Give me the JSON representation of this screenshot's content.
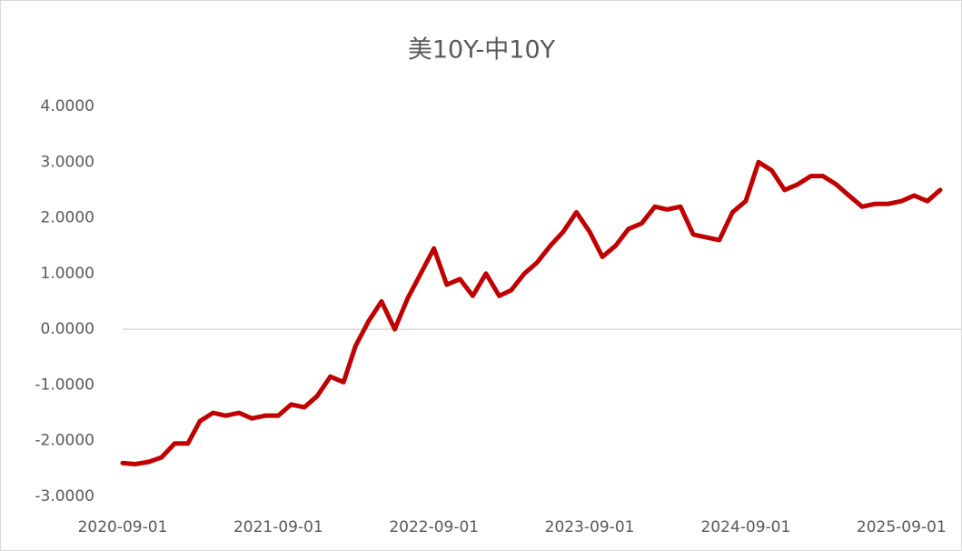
{
  "chart_data": {
    "type": "line",
    "title": "美10Y-中10Y",
    "x": [
      "2020-09-01",
      "2020-10-01",
      "2020-11-01",
      "2020-12-01",
      "2021-01-01",
      "2021-02-01",
      "2021-03-01",
      "2021-04-01",
      "2021-05-01",
      "2021-06-01",
      "2021-07-01",
      "2021-08-01",
      "2021-09-01",
      "2021-10-01",
      "2021-11-01",
      "2021-12-01",
      "2022-01-01",
      "2022-02-01",
      "2022-03-01",
      "2022-04-01",
      "2022-05-01",
      "2022-06-01",
      "2022-07-01",
      "2022-08-01",
      "2022-09-01",
      "2022-10-01",
      "2022-11-01",
      "2022-12-01",
      "2023-01-01",
      "2023-02-01",
      "2023-03-01",
      "2023-04-01",
      "2023-05-01",
      "2023-06-01",
      "2023-07-01",
      "2023-08-01",
      "2023-09-01",
      "2023-10-01",
      "2023-11-01",
      "2023-12-01",
      "2024-01-01",
      "2024-02-01",
      "2024-03-01",
      "2024-04-01",
      "2024-05-01",
      "2024-06-01",
      "2024-07-01",
      "2024-08-01",
      "2024-09-01",
      "2024-10-01",
      "2024-11-01",
      "2024-12-01",
      "2025-01-01",
      "2025-02-01",
      "2025-03-01",
      "2025-04-01",
      "2025-05-01",
      "2025-06-01",
      "2025-07-01",
      "2025-08-01",
      "2025-09-01",
      "2025-10-01",
      "2025-11-01",
      "2025-12-01"
    ],
    "series": [
      {
        "name": "美10Y-中10Y",
        "color": "#c00000",
        "values": [
          -2.4,
          -2.42,
          -2.38,
          -2.3,
          -2.05,
          -2.05,
          -1.65,
          -1.5,
          -1.55,
          -1.5,
          -1.6,
          -1.55,
          -1.55,
          -1.35,
          -1.4,
          -1.2,
          -0.85,
          -0.95,
          -0.3,
          0.15,
          0.5,
          0.0,
          0.55,
          1.0,
          1.45,
          0.8,
          0.9,
          0.6,
          1.0,
          0.6,
          0.7,
          1.0,
          1.2,
          1.5,
          1.75,
          2.1,
          1.75,
          1.3,
          1.5,
          1.8,
          1.9,
          2.2,
          2.15,
          2.2,
          1.7,
          1.65,
          1.6,
          2.1,
          2.3,
          3.0,
          2.85,
          2.5,
          2.6,
          2.75,
          2.75,
          2.6,
          2.4,
          2.2,
          2.25,
          2.25,
          2.3,
          2.4,
          2.3,
          2.5
        ]
      }
    ],
    "xlim": [
      "2020-09-01",
      "2025-12-01"
    ],
    "xticks": [
      "2020-09-01",
      "2021-09-01",
      "2022-09-01",
      "2023-09-01",
      "2024-09-01",
      "2025-09-01"
    ],
    "ylim": [
      -3,
      4
    ],
    "yticks": [
      {
        "value": 4,
        "label": "4.0000"
      },
      {
        "value": 3,
        "label": "3.0000"
      },
      {
        "value": 2,
        "label": "2.0000"
      },
      {
        "value": 1,
        "label": "1.0000"
      },
      {
        "value": 0,
        "label": "0.0000"
      },
      {
        "value": -1,
        "label": "-1.0000"
      },
      {
        "value": -2,
        "label": "-2.0000"
      },
      {
        "value": -3,
        "label": "-3.0000"
      }
    ],
    "grid": false
  }
}
